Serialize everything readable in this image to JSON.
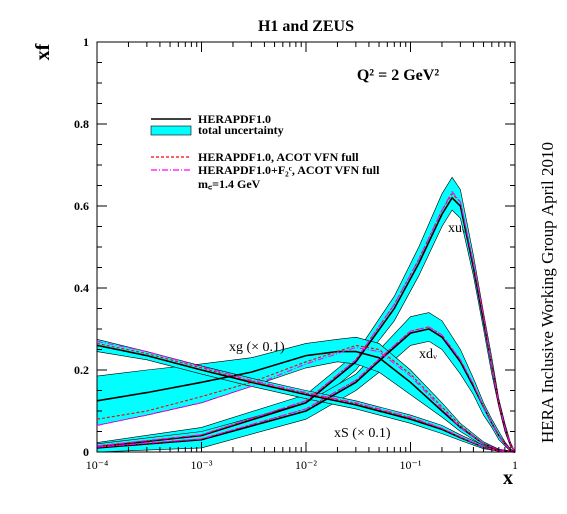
{
  "chart_data": {
    "type": "line",
    "title": "H1 and ZEUS",
    "ylabel": "xf",
    "xlabel": "x",
    "annotation_q2": "Q² = 2 GeV²",
    "side_label_1": "April 2010",
    "side_label_2": "HERA Inclusive Working Group",
    "x_scale": "log",
    "xlim": [
      0.0001,
      1
    ],
    "ylim": [
      0,
      1
    ],
    "x_ticks": [
      {
        "value": 0.0001,
        "label": "10⁻⁴"
      },
      {
        "value": 0.001,
        "label": "10⁻³"
      },
      {
        "value": 0.01,
        "label": "10⁻²"
      },
      {
        "value": 0.1,
        "label": "10⁻¹"
      },
      {
        "value": 1,
        "label": "1"
      }
    ],
    "y_ticks": [
      {
        "value": 0,
        "label": "0"
      },
      {
        "value": 0.2,
        "label": "0.2"
      },
      {
        "value": 0.4,
        "label": "0.4"
      },
      {
        "value": 0.6,
        "label": "0.6"
      },
      {
        "value": 0.8,
        "label": "0.8"
      },
      {
        "value": 1,
        "label": "1"
      }
    ],
    "legend": {
      "placement": "top-left",
      "entries": [
        {
          "label": "HERAPDF1.0",
          "style": "solid-black"
        },
        {
          "label": "total uncertainty",
          "style": "cyan-band"
        },
        {
          "label": "HERAPDF1.0, ACOT VFN full",
          "style": "dashed-red"
        },
        {
          "label": "HERAPDF1.0+F₂ᶜ, ACOT VFN full",
          "style": "dashdot-magenta"
        },
        {
          "label": "m꜀=1.4 GeV",
          "style": "text"
        }
      ]
    },
    "colors": {
      "central": "#000000",
      "band": "#00ffff",
      "acot": "#ff0000",
      "acot_f2c": "#ff00ff"
    },
    "curve_labels": {
      "xuv": "xuᵥ",
      "xdv": "xdᵥ",
      "xg": "xg (× 0.1)",
      "xS": "xS (× 0.1)"
    },
    "series": [
      {
        "id": "xuv",
        "x": [
          0.0001,
          0.001,
          0.01,
          0.03,
          0.07,
          0.12,
          0.2,
          0.25,
          0.3,
          0.4,
          0.5,
          0.6,
          0.7,
          0.8,
          0.9,
          1.0
        ],
        "central": [
          0.013,
          0.04,
          0.12,
          0.22,
          0.35,
          0.46,
          0.58,
          0.62,
          0.6,
          0.45,
          0.32,
          0.21,
          0.12,
          0.06,
          0.02,
          0.0
        ],
        "band_low": [
          0.003,
          0.02,
          0.1,
          0.2,
          0.32,
          0.43,
          0.55,
          0.59,
          0.57,
          0.43,
          0.3,
          0.19,
          0.11,
          0.05,
          0.015,
          0.0
        ],
        "band_high": [
          0.023,
          0.06,
          0.14,
          0.24,
          0.38,
          0.5,
          0.63,
          0.67,
          0.64,
          0.48,
          0.34,
          0.23,
          0.13,
          0.07,
          0.025,
          0.0
        ],
        "acot": [
          0.015,
          0.042,
          0.125,
          0.225,
          0.36,
          0.47,
          0.59,
          0.63,
          0.61,
          0.46,
          0.33,
          0.21,
          0.12,
          0.06,
          0.02,
          0.0
        ],
        "acot_f2c": [
          0.015,
          0.042,
          0.125,
          0.225,
          0.36,
          0.47,
          0.59,
          0.635,
          0.61,
          0.46,
          0.33,
          0.21,
          0.12,
          0.06,
          0.02,
          0.0
        ]
      },
      {
        "id": "xdv",
        "x": [
          0.0001,
          0.001,
          0.01,
          0.03,
          0.06,
          0.1,
          0.15,
          0.2,
          0.3,
          0.4,
          0.5,
          0.6,
          0.7,
          0.8,
          0.9,
          1.0
        ],
        "central": [
          0.01,
          0.03,
          0.1,
          0.17,
          0.24,
          0.29,
          0.3,
          0.28,
          0.22,
          0.16,
          0.11,
          0.07,
          0.04,
          0.02,
          0.005,
          0.0
        ],
        "band_low": [
          0.0,
          0.01,
          0.08,
          0.15,
          0.21,
          0.26,
          0.27,
          0.25,
          0.19,
          0.14,
          0.09,
          0.06,
          0.03,
          0.015,
          0.003,
          0.0
        ],
        "band_high": [
          0.02,
          0.05,
          0.12,
          0.19,
          0.27,
          0.33,
          0.34,
          0.32,
          0.25,
          0.18,
          0.12,
          0.08,
          0.05,
          0.025,
          0.008,
          0.0
        ],
        "acot": [
          0.012,
          0.032,
          0.105,
          0.175,
          0.245,
          0.295,
          0.305,
          0.285,
          0.225,
          0.165,
          0.11,
          0.07,
          0.04,
          0.02,
          0.005,
          0.0
        ],
        "acot_f2c": [
          0.012,
          0.032,
          0.105,
          0.175,
          0.245,
          0.295,
          0.305,
          0.285,
          0.225,
          0.165,
          0.11,
          0.07,
          0.04,
          0.02,
          0.005,
          0.0
        ]
      },
      {
        "id": "xg",
        "x": [
          0.0001,
          0.0003,
          0.001,
          0.003,
          0.01,
          0.02,
          0.03,
          0.05,
          0.1,
          0.2,
          0.3,
          0.5,
          0.7,
          1.0
        ],
        "central": [
          0.125,
          0.145,
          0.17,
          0.195,
          0.235,
          0.245,
          0.245,
          0.23,
          0.17,
          0.1,
          0.06,
          0.02,
          0.005,
          0.0
        ],
        "band_low": [
          0.065,
          0.09,
          0.12,
          0.16,
          0.205,
          0.22,
          0.215,
          0.195,
          0.14,
          0.085,
          0.05,
          0.015,
          0.003,
          0.0
        ],
        "band_high": [
          0.185,
          0.2,
          0.215,
          0.23,
          0.265,
          0.275,
          0.28,
          0.265,
          0.2,
          0.12,
          0.07,
          0.025,
          0.007,
          0.0
        ],
        "acot": [
          0.08,
          0.1,
          0.135,
          0.17,
          0.22,
          0.245,
          0.26,
          0.25,
          0.19,
          0.11,
          0.065,
          0.02,
          0.005,
          0.0
        ],
        "acot_f2c": [
          0.065,
          0.09,
          0.12,
          0.16,
          0.215,
          0.24,
          0.255,
          0.245,
          0.185,
          0.105,
          0.06,
          0.02,
          0.005,
          0.0
        ]
      },
      {
        "id": "xS",
        "x": [
          0.0001,
          0.0003,
          0.001,
          0.003,
          0.01,
          0.03,
          0.1,
          0.2,
          0.3,
          0.5,
          0.7,
          1.0
        ],
        "central": [
          0.26,
          0.235,
          0.2,
          0.17,
          0.14,
          0.115,
          0.08,
          0.055,
          0.035,
          0.012,
          0.003,
          0.0
        ],
        "band_low": [
          0.245,
          0.225,
          0.19,
          0.16,
          0.13,
          0.105,
          0.07,
          0.045,
          0.028,
          0.008,
          0.002,
          0.0
        ],
        "band_high": [
          0.275,
          0.245,
          0.21,
          0.18,
          0.15,
          0.125,
          0.09,
          0.065,
          0.042,
          0.016,
          0.004,
          0.0
        ],
        "acot": [
          0.265,
          0.24,
          0.205,
          0.172,
          0.143,
          0.118,
          0.083,
          0.057,
          0.036,
          0.012,
          0.003,
          0.0
        ],
        "acot_f2c": [
          0.27,
          0.245,
          0.208,
          0.175,
          0.145,
          0.12,
          0.085,
          0.058,
          0.037,
          0.012,
          0.003,
          0.0
        ]
      }
    ]
  }
}
